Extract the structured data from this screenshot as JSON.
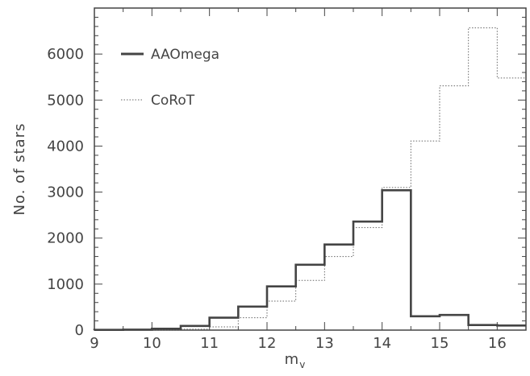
{
  "chart_data": {
    "type": "histogram",
    "xlabel_main": "m",
    "xlabel_sub": "v",
    "ylabel": "No. of stars",
    "xlim": [
      9,
      16.5
    ],
    "ylim": [
      0,
      7000
    ],
    "xticks": [
      9,
      10,
      11,
      12,
      13,
      14,
      15,
      16
    ],
    "yticks": [
      0,
      1000,
      2000,
      3000,
      4000,
      5000,
      6000
    ],
    "bin_edges": [
      9,
      9.5,
      10,
      10.5,
      11,
      11.5,
      12,
      12.5,
      13,
      13.5,
      14,
      14.5,
      15,
      15.5,
      16,
      16.5
    ],
    "series": [
      {
        "name": "AAOmega",
        "style": "solid-thick",
        "color": "#444444",
        "values": [
          5,
          10,
          30,
          90,
          270,
          510,
          950,
          1420,
          1860,
          2360,
          3040,
          300,
          330,
          110,
          100
        ]
      },
      {
        "name": "CoRoT",
        "style": "dotted-thin",
        "color": "#666666",
        "values": [
          0,
          0,
          5,
          20,
          70,
          270,
          630,
          1080,
          1600,
          2230,
          3100,
          4110,
          5310,
          6570,
          5480
        ]
      }
    ],
    "legend_position": "top-left",
    "grid": false
  }
}
